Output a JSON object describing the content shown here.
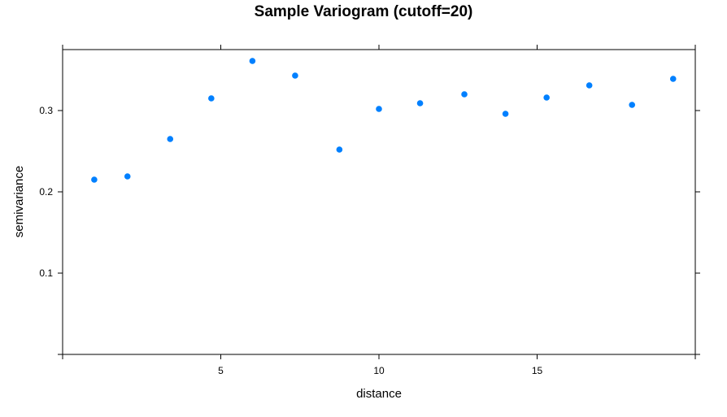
{
  "chart_data": {
    "type": "scatter",
    "title": "Sample Variogram (cutoff=20)",
    "xlabel": "distance",
    "ylabel": "semivariance",
    "xlim": [
      0,
      20
    ],
    "ylim": [
      0,
      0.375
    ],
    "x_ticks": [
      5,
      10,
      15
    ],
    "x_tick_labels": [
      "5",
      "10",
      "15"
    ],
    "y_ticks": [
      0.1,
      0.2,
      0.3
    ],
    "y_tick_labels": [
      "0.1",
      "0.2",
      "0.3"
    ],
    "grid": false,
    "legend": "none",
    "point_color": "#0080ff",
    "series": [
      {
        "x": [
          1.0,
          2.05,
          3.4,
          4.7,
          6.0,
          7.35,
          8.75,
          10.0,
          11.3,
          12.7,
          14.0,
          15.3,
          16.65,
          18.0,
          19.3
        ],
        "y": [
          0.215,
          0.219,
          0.265,
          0.315,
          0.361,
          0.343,
          0.252,
          0.302,
          0.309,
          0.32,
          0.296,
          0.316,
          0.331,
          0.307,
          0.339
        ]
      }
    ]
  }
}
